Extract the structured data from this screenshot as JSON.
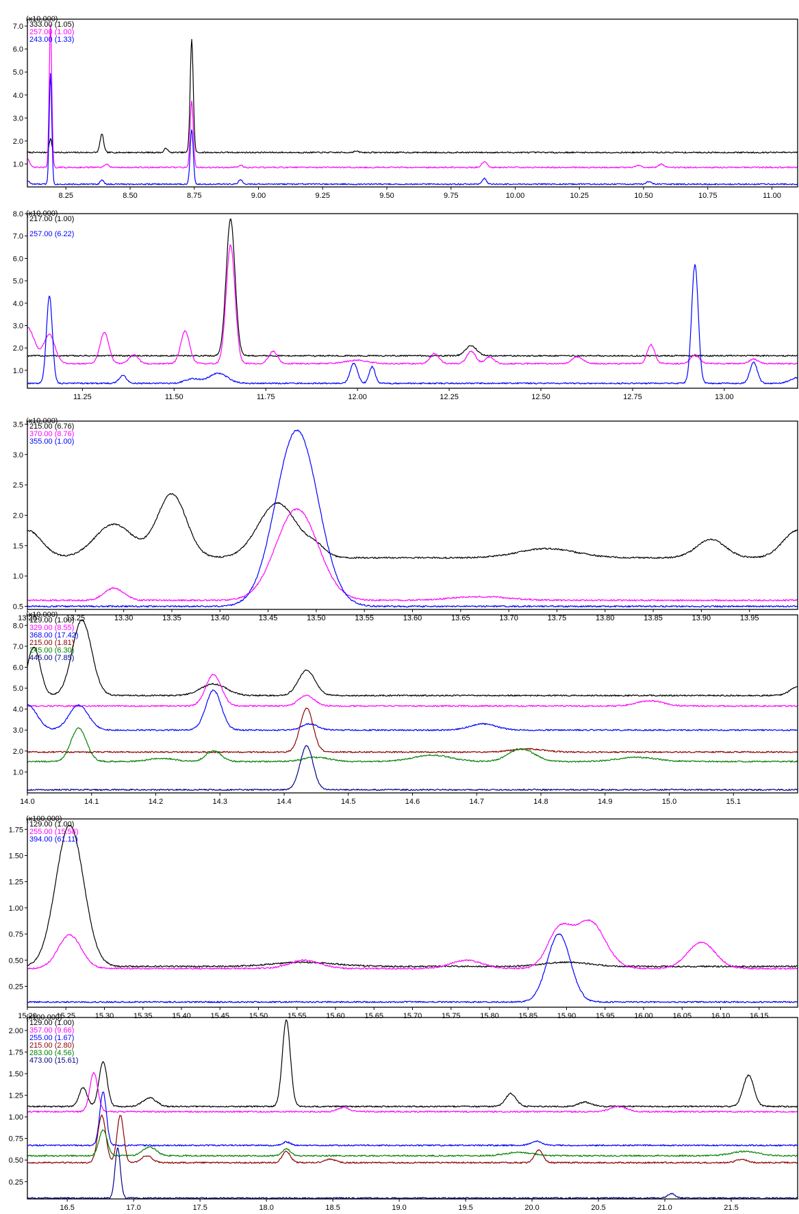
{
  "chart_data": [
    {
      "type": "line",
      "scale_label": "(x10,000)",
      "xlim": [
        8.1,
        11.1
      ],
      "ylim": [
        0,
        7.3
      ],
      "xticks": [
        "8.25",
        "8.50",
        "8.75",
        "9.00",
        "9.25",
        "9.50",
        "9.75",
        "10.00",
        "10.25",
        "10.50",
        "10.75",
        "11.00"
      ],
      "yticks": [
        "1.0",
        "2.0",
        "3.0",
        "4.0",
        "5.0",
        "6.0",
        "7.0"
      ],
      "series": [
        {
          "name": "333.00 (1.05)",
          "color": "#000000",
          "baseline": 1.5,
          "peaks": [
            [
              8.19,
              0.6,
              0.005
            ],
            [
              8.39,
              0.8,
              0.007
            ],
            [
              8.74,
              4.9,
              0.006
            ],
            [
              8.64,
              0.2,
              0.006
            ],
            [
              9.38,
              0.05,
              0.01
            ]
          ]
        },
        {
          "name": "257.00 (1.00)",
          "color": "#ff00ff",
          "baseline": 0.85,
          "peaks": [
            [
              8.1,
              0.4,
              0.008
            ],
            [
              8.19,
              6.2,
              0.005
            ],
            [
              8.74,
              2.9,
              0.006
            ],
            [
              8.41,
              0.15,
              0.008
            ],
            [
              8.93,
              0.1,
              0.008
            ],
            [
              9.88,
              0.25,
              0.01
            ],
            [
              10.57,
              0.15,
              0.01
            ],
            [
              10.48,
              0.08,
              0.01
            ]
          ]
        },
        {
          "name": "243.00 (1.33)",
          "color": "#0000ff",
          "baseline": 0.12,
          "peaks": [
            [
              8.1,
              0.15,
              0.008
            ],
            [
              8.19,
              4.8,
              0.005
            ],
            [
              8.39,
              0.2,
              0.006
            ],
            [
              8.74,
              2.4,
              0.006
            ],
            [
              8.93,
              0.2,
              0.007
            ],
            [
              9.88,
              0.25,
              0.008
            ],
            [
              10.52,
              0.1,
              0.01
            ]
          ]
        }
      ]
    },
    {
      "type": "line",
      "scale_label": "(x10,000)",
      "xlim": [
        11.1,
        13.2
      ],
      "ylim": [
        0.2,
        8.0
      ],
      "xticks": [
        "11.25",
        "11.50",
        "11.75",
        "12.00",
        "12.25",
        "12.50",
        "12.75",
        "13.00"
      ],
      "yticks": [
        "1.0",
        "2.0",
        "3.0",
        "4.0",
        "5.0",
        "6.0",
        "7.0",
        "8.0"
      ],
      "series": [
        {
          "name": "217.00 (1.00)",
          "color": "#000000",
          "baseline": 1.65,
          "peaks": [
            [
              11.654,
              6.1,
              0.012
            ],
            [
              12.31,
              0.45,
              0.015
            ]
          ]
        },
        {
          "name": "",
          "color": "#ff00ff",
          "baseline": 1.3,
          "peaks": [
            [
              11.1,
              1.6,
              0.02
            ],
            [
              11.16,
              1.3,
              0.015
            ],
            [
              11.31,
              1.4,
              0.012
            ],
            [
              11.39,
              0.4,
              0.012
            ],
            [
              11.53,
              1.45,
              0.012
            ],
            [
              11.654,
              5.3,
              0.012
            ],
            [
              11.77,
              0.55,
              0.012
            ],
            [
              12.0,
              0.15,
              0.03
            ],
            [
              12.21,
              0.45,
              0.012
            ],
            [
              12.31,
              0.55,
              0.012
            ],
            [
              12.36,
              0.3,
              0.012
            ],
            [
              12.6,
              0.3,
              0.015
            ],
            [
              12.8,
              0.85,
              0.01
            ],
            [
              12.92,
              0.4,
              0.012
            ],
            [
              13.08,
              0.2,
              0.012
            ]
          ]
        },
        {
          "name": "257.00 (6.22)",
          "color": "#0000ff",
          "baseline": 0.42,
          "peaks": [
            [
              11.16,
              3.9,
              0.008
            ],
            [
              11.36,
              0.35,
              0.01
            ],
            [
              11.55,
              0.2,
              0.02
            ],
            [
              11.62,
              0.45,
              0.025
            ],
            [
              11.99,
              0.9,
              0.01
            ],
            [
              12.04,
              0.75,
              0.008
            ],
            [
              12.92,
              5.3,
              0.009
            ],
            [
              13.08,
              0.95,
              0.01
            ],
            [
              13.2,
              0.25,
              0.02
            ]
          ]
        }
      ]
    },
    {
      "type": "line",
      "scale_label": "(x10,000)",
      "xlim": [
        13.2,
        14.0
      ],
      "ylim": [
        0.45,
        3.55
      ],
      "xticks": [
        "13.20",
        "13.25",
        "13.30",
        "13.35",
        "13.40",
        "13.45",
        "13.50",
        "13.55",
        "13.60",
        "13.65",
        "13.70",
        "13.75",
        "13.80",
        "13.85",
        "13.90",
        "13.95"
      ],
      "yticks": [
        "0.5",
        "1.0",
        "1.5",
        "2.0",
        "2.5",
        "3.0",
        "3.5"
      ],
      "series": [
        {
          "name": "215.00 (6.76)",
          "color": "#000000",
          "baseline": 1.3,
          "peaks": [
            [
              13.2,
              0.45,
              0.015
            ],
            [
              13.29,
              0.55,
              0.02
            ],
            [
              13.35,
              1.05,
              0.015
            ],
            [
              13.46,
              0.9,
              0.02
            ],
            [
              13.5,
              0.15,
              0.01
            ],
            [
              13.74,
              0.15,
              0.03
            ],
            [
              13.91,
              0.3,
              0.015
            ],
            [
              14.0,
              0.45,
              0.015
            ]
          ]
        },
        {
          "name": "370.00 (8.76)",
          "color": "#ff00ff",
          "baseline": 0.6,
          "peaks": [
            [
              13.29,
              0.2,
              0.01
            ],
            [
              13.48,
              1.5,
              0.022
            ],
            [
              13.67,
              0.06,
              0.03
            ]
          ]
        },
        {
          "name": "355.00 (1.00)",
          "color": "#0000ff",
          "baseline": 0.5,
          "peaks": [
            [
              13.48,
              2.9,
              0.022
            ]
          ]
        }
      ]
    },
    {
      "type": "line",
      "scale_label": "(x10,000)",
      "xlim": [
        14.0,
        15.2
      ],
      "ylim": [
        0,
        8.5
      ],
      "xticks": [
        "14.0",
        "14.1",
        "14.2",
        "14.3",
        "14.4",
        "14.5",
        "14.6",
        "14.7",
        "14.8",
        "14.9",
        "15.0",
        "15.1"
      ],
      "yticks": [
        "1.0",
        "2.0",
        "3.0",
        "4.0",
        "5.0",
        "6.0",
        "7.0",
        "8.0"
      ],
      "series": [
        {
          "name": "129.00 (1.00)",
          "color": "#000000",
          "baseline": 4.65,
          "peaks": [
            [
              14.01,
              2.3,
              0.01
            ],
            [
              14.085,
              3.6,
              0.015
            ],
            [
              14.29,
              0.55,
              0.02
            ],
            [
              14.435,
              1.2,
              0.013
            ],
            [
              15.2,
              0.4,
              0.012
            ]
          ]
        },
        {
          "name": "329.00 (8.55)",
          "color": "#ff00ff",
          "baseline": 4.15,
          "peaks": [
            [
              14.29,
              1.5,
              0.012
            ],
            [
              14.435,
              0.5,
              0.012
            ],
            [
              14.97,
              0.25,
              0.02
            ]
          ]
        },
        {
          "name": "368.00 (17.42)",
          "color": "#0000ff",
          "baseline": 3.0,
          "peaks": [
            [
              14.0,
              1.2,
              0.015
            ],
            [
              14.08,
              1.2,
              0.015
            ],
            [
              14.29,
              1.9,
              0.012
            ],
            [
              14.44,
              0.3,
              0.012
            ],
            [
              14.71,
              0.3,
              0.02
            ]
          ]
        },
        {
          "name": "215.00 (1.81)",
          "color": "#8b0000",
          "baseline": 1.95,
          "peaks": [
            [
              14.435,
              2.1,
              0.01
            ],
            [
              14.78,
              0.15,
              0.025
            ]
          ]
        },
        {
          "name": "245.00 (6.30)",
          "color": "#008000",
          "baseline": 1.5,
          "peaks": [
            [
              14.08,
              1.6,
              0.012
            ],
            [
              14.21,
              0.15,
              0.02
            ],
            [
              14.29,
              0.5,
              0.012
            ],
            [
              14.45,
              0.2,
              0.02
            ],
            [
              14.63,
              0.3,
              0.03
            ],
            [
              14.77,
              0.6,
              0.02
            ],
            [
              14.95,
              0.2,
              0.03
            ]
          ]
        },
        {
          "name": "445.00 (7.85)",
          "color": "#00008b",
          "baseline": 0.15,
          "peaks": [
            [
              14.435,
              2.1,
              0.01
            ]
          ]
        }
      ]
    },
    {
      "type": "line",
      "scale_label": "(x100,000)",
      "xlim": [
        15.2,
        16.2
      ],
      "ylim": [
        0.05,
        1.85
      ],
      "xticks": [
        "15.20",
        "15.25",
        "15.30",
        "15.35",
        "15.40",
        "15.45",
        "15.50",
        "15.55",
        "15.60",
        "15.65",
        "15.70",
        "15.75",
        "15.80",
        "15.85",
        "15.90",
        "15.95",
        "16.00",
        "16.05",
        "16.10",
        "16.15"
      ],
      "yticks": [
        "0.25",
        "0.50",
        "0.75",
        "1.00",
        "1.25",
        "1.50",
        "1.75"
      ],
      "series": [
        {
          "name": "129.00 (1.00)",
          "color": "#000000",
          "baseline": 0.44,
          "peaks": [
            [
              15.255,
              1.35,
              0.018
            ],
            [
              15.56,
              0.04,
              0.04
            ],
            [
              15.9,
              0.04,
              0.03
            ]
          ]
        },
        {
          "name": "255.00 (15.58)",
          "color": "#ff00ff",
          "baseline": 0.42,
          "peaks": [
            [
              15.255,
              0.32,
              0.015
            ],
            [
              15.56,
              0.08,
              0.02
            ],
            [
              15.77,
              0.08,
              0.02
            ],
            [
              15.89,
              0.35,
              0.015
            ],
            [
              15.93,
              0.45,
              0.02
            ],
            [
              16.075,
              0.25,
              0.018
            ]
          ]
        },
        {
          "name": "394.00 (61.11)",
          "color": "#0000ff",
          "baseline": 0.1,
          "peaks": [
            [
              15.89,
              0.65,
              0.015
            ]
          ]
        }
      ]
    },
    {
      "type": "line",
      "scale_label": "(x100,000)",
      "xlim": [
        16.2,
        22.0
      ],
      "ylim": [
        0.05,
        2.15
      ],
      "xticks": [
        "16.5",
        "17.0",
        "17.5",
        "18.0",
        "18.5",
        "19.0",
        "19.5",
        "20.0",
        "20.5",
        "21.0",
        "21.5"
      ],
      "yticks": [
        "0.25",
        "0.50",
        "0.75",
        "1.00",
        "1.25",
        "1.50",
        "1.75",
        "2.00"
      ],
      "series": [
        {
          "name": "129.00 (1.00)",
          "color": "#000000",
          "baseline": 1.12,
          "peaks": [
            [
              16.62,
              0.22,
              0.03
            ],
            [
              16.77,
              0.52,
              0.03
            ],
            [
              17.12,
              0.1,
              0.05
            ],
            [
              18.15,
              1.0,
              0.03
            ],
            [
              19.84,
              0.15,
              0.04
            ],
            [
              20.4,
              0.05,
              0.05
            ],
            [
              21.63,
              0.36,
              0.04
            ]
          ]
        },
        {
          "name": "357.00 (9.66)",
          "color": "#ff00ff",
          "baseline": 1.06,
          "peaks": [
            [
              16.7,
              0.45,
              0.03
            ],
            [
              18.58,
              0.05,
              0.04
            ],
            [
              20.65,
              0.06,
              0.06
            ]
          ]
        },
        {
          "name": "255.00 (1.67)",
          "color": "#0000ff",
          "baseline": 0.67,
          "peaks": [
            [
              16.77,
              0.62,
              0.025
            ],
            [
              18.15,
              0.04,
              0.03
            ],
            [
              20.03,
              0.05,
              0.04
            ]
          ]
        },
        {
          "name": "215.00 (2.80)",
          "color": "#8b0000",
          "baseline": 0.47,
          "peaks": [
            [
              16.76,
              0.55,
              0.03
            ],
            [
              16.9,
              0.55,
              0.025
            ],
            [
              17.1,
              0.08,
              0.04
            ],
            [
              18.15,
              0.13,
              0.03
            ],
            [
              18.48,
              0.04,
              0.04
            ],
            [
              20.05,
              0.15,
              0.03
            ],
            [
              21.58,
              0.04,
              0.04
            ]
          ]
        },
        {
          "name": "283.00 (4.56)",
          "color": "#008000",
          "baseline": 0.55,
          "peaks": [
            [
              16.77,
              0.3,
              0.03
            ],
            [
              17.12,
              0.1,
              0.05
            ],
            [
              18.15,
              0.08,
              0.03
            ],
            [
              19.9,
              0.04,
              0.1
            ],
            [
              21.6,
              0.05,
              0.1
            ]
          ]
        },
        {
          "name": "473.00 (15.61)",
          "color": "#00008b",
          "baseline": 0.06,
          "peaks": [
            [
              16.88,
              0.58,
              0.02
            ],
            [
              21.05,
              0.05,
              0.03
            ]
          ]
        }
      ]
    }
  ]
}
